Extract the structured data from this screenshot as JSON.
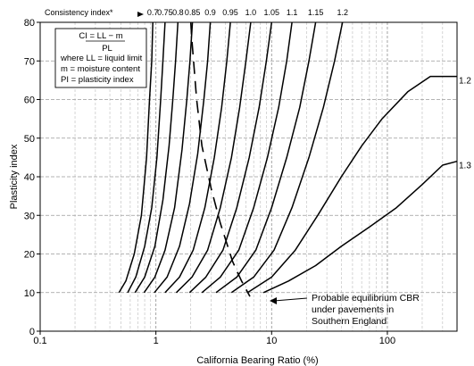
{
  "chart_data": {
    "type": "line",
    "xscale": "log",
    "xlim": [
      0.1,
      400
    ],
    "ylim": [
      0,
      80
    ],
    "xlabel": "California Bearing Ratio  (%)",
    "ylabel": "Plasticity index",
    "x_tick_labels": [
      {
        "value": 0.1,
        "label": "0.1"
      },
      {
        "value": 1,
        "label": "1"
      },
      {
        "value": 10,
        "label": "10"
      },
      {
        "value": 100,
        "label": "100"
      }
    ],
    "y_ticks": [
      0,
      10,
      20,
      30,
      40,
      50,
      60,
      70,
      80
    ],
    "grid": true,
    "top_axis_title": "Consistency index*",
    "series": [
      {
        "name": "0.7",
        "points": [
          [
            0.48,
            10
          ],
          [
            0.55,
            13
          ],
          [
            0.65,
            20
          ],
          [
            0.75,
            30
          ],
          [
            0.83,
            45
          ],
          [
            0.88,
            60
          ],
          [
            0.92,
            70
          ],
          [
            0.94,
            80
          ]
        ]
      },
      {
        "name": "0.75",
        "points": [
          [
            0.57,
            10
          ],
          [
            0.67,
            14
          ],
          [
            0.8,
            22
          ],
          [
            0.92,
            32
          ],
          [
            1.02,
            45
          ],
          [
            1.1,
            60
          ],
          [
            1.15,
            70
          ],
          [
            1.2,
            80
          ]
        ]
      },
      {
        "name": "0.8",
        "points": [
          [
            0.66,
            10
          ],
          [
            0.8,
            14
          ],
          [
            0.98,
            22
          ],
          [
            1.15,
            34
          ],
          [
            1.3,
            48
          ],
          [
            1.4,
            60
          ],
          [
            1.48,
            70
          ],
          [
            1.55,
            80
          ]
        ]
      },
      {
        "name": "0.85",
        "points": [
          [
            0.79,
            10
          ],
          [
            0.98,
            14
          ],
          [
            1.2,
            21
          ],
          [
            1.45,
            32
          ],
          [
            1.68,
            47
          ],
          [
            1.85,
            60
          ],
          [
            1.97,
            70
          ],
          [
            2.07,
            80
          ]
        ]
      },
      {
        "name": "0.9",
        "points": [
          [
            0.97,
            10
          ],
          [
            1.25,
            14
          ],
          [
            1.6,
            22
          ],
          [
            1.95,
            33
          ],
          [
            2.3,
            46
          ],
          [
            2.6,
            60
          ],
          [
            2.8,
            70
          ],
          [
            2.95,
            80
          ]
        ]
      },
      {
        "name": "0.95",
        "points": [
          [
            1.2,
            10
          ],
          [
            1.6,
            14
          ],
          [
            2.1,
            21
          ],
          [
            2.65,
            32
          ],
          [
            3.2,
            45
          ],
          [
            3.7,
            58
          ],
          [
            4.1,
            70
          ],
          [
            4.4,
            80
          ]
        ]
      },
      {
        "name": "1.0",
        "points": [
          [
            1.5,
            10
          ],
          [
            2.05,
            14
          ],
          [
            2.8,
            21
          ],
          [
            3.6,
            32
          ],
          [
            4.5,
            45
          ],
          [
            5.3,
            58
          ],
          [
            6.0,
            70
          ],
          [
            6.6,
            80
          ]
        ]
      },
      {
        "name": "1.05",
        "points": [
          [
            1.95,
            10
          ],
          [
            2.7,
            14
          ],
          [
            3.8,
            21
          ],
          [
            5.0,
            32
          ],
          [
            6.4,
            45
          ],
          [
            7.8,
            58
          ],
          [
            9.0,
            70
          ],
          [
            10.0,
            80
          ]
        ]
      },
      {
        "name": "1.1",
        "points": [
          [
            2.5,
            10
          ],
          [
            3.6,
            14
          ],
          [
            5.2,
            21
          ],
          [
            7.0,
            32
          ],
          [
            9.2,
            45
          ],
          [
            11.5,
            58
          ],
          [
            13.5,
            70
          ],
          [
            15,
            80
          ]
        ]
      },
      {
        "name": "1.15",
        "points": [
          [
            3.3,
            10
          ],
          [
            5.0,
            14
          ],
          [
            7.3,
            21
          ],
          [
            10,
            32
          ],
          [
            13.5,
            45
          ],
          [
            17.5,
            58
          ],
          [
            21,
            70
          ],
          [
            24,
            80
          ]
        ]
      },
      {
        "name": "1.2",
        "points": [
          [
            4.5,
            10
          ],
          [
            7.0,
            14
          ],
          [
            10.5,
            21
          ],
          [
            15,
            32
          ],
          [
            21,
            45
          ],
          [
            28,
            58
          ],
          [
            35,
            70
          ],
          [
            41,
            80
          ]
        ]
      },
      {
        "name": "1.2",
        "points": [
          [
            6.2,
            10
          ],
          [
            10,
            14
          ],
          [
            16,
            21
          ],
          [
            25,
            30
          ],
          [
            40,
            40
          ],
          [
            60,
            48
          ],
          [
            90,
            55
          ],
          [
            150,
            62
          ],
          [
            235,
            66
          ],
          [
            400,
            66
          ]
        ]
      },
      {
        "name": "1.3",
        "points": [
          [
            8.5,
            10
          ],
          [
            14,
            13
          ],
          [
            24,
            17
          ],
          [
            40,
            22
          ],
          [
            70,
            27
          ],
          [
            120,
            32
          ],
          [
            200,
            38
          ],
          [
            300,
            43
          ],
          [
            400,
            44
          ]
        ]
      }
    ],
    "dashed_line": {
      "label": "Probable equilibrium CBR under pavements in Southern England",
      "points": [
        [
          2.0,
          80
        ],
        [
          2.05,
          75
        ],
        [
          2.25,
          60
        ],
        [
          2.5,
          48
        ],
        [
          3.0,
          37
        ],
        [
          3.6,
          28
        ],
        [
          4.6,
          18
        ],
        [
          5.5,
          13
        ],
        [
          6.5,
          9
        ]
      ]
    },
    "top_labels": [
      {
        "text": "0.7",
        "x": 0.94
      },
      {
        "text": "0.75",
        "x": 1.2
      },
      {
        "text": "0.8",
        "x": 1.55
      },
      {
        "text": "0.85",
        "x": 2.07
      },
      {
        "text": "0.9",
        "x": 2.95
      },
      {
        "text": "0.95",
        "x": 4.4
      },
      {
        "text": "1.0",
        "x": 6.6
      },
      {
        "text": "1.05",
        "x": 10
      },
      {
        "text": "1.1",
        "x": 15
      },
      {
        "text": "1.15",
        "x": 24
      },
      {
        "text": "1.2",
        "x": 41
      }
    ],
    "right_labels": [
      {
        "text": "1.2",
        "y": 66
      },
      {
        "text": "1.3",
        "y": 44
      }
    ],
    "legend_box": {
      "lines": [
        "CI = LL − m",
        "PL",
        "where LL = liquid limit",
        "m = moisture content",
        "PI = plasticity index"
      ]
    },
    "annotation": {
      "lines": [
        "Probable equilibrium CBR",
        "under pavements in",
        "Southern England"
      ]
    }
  }
}
